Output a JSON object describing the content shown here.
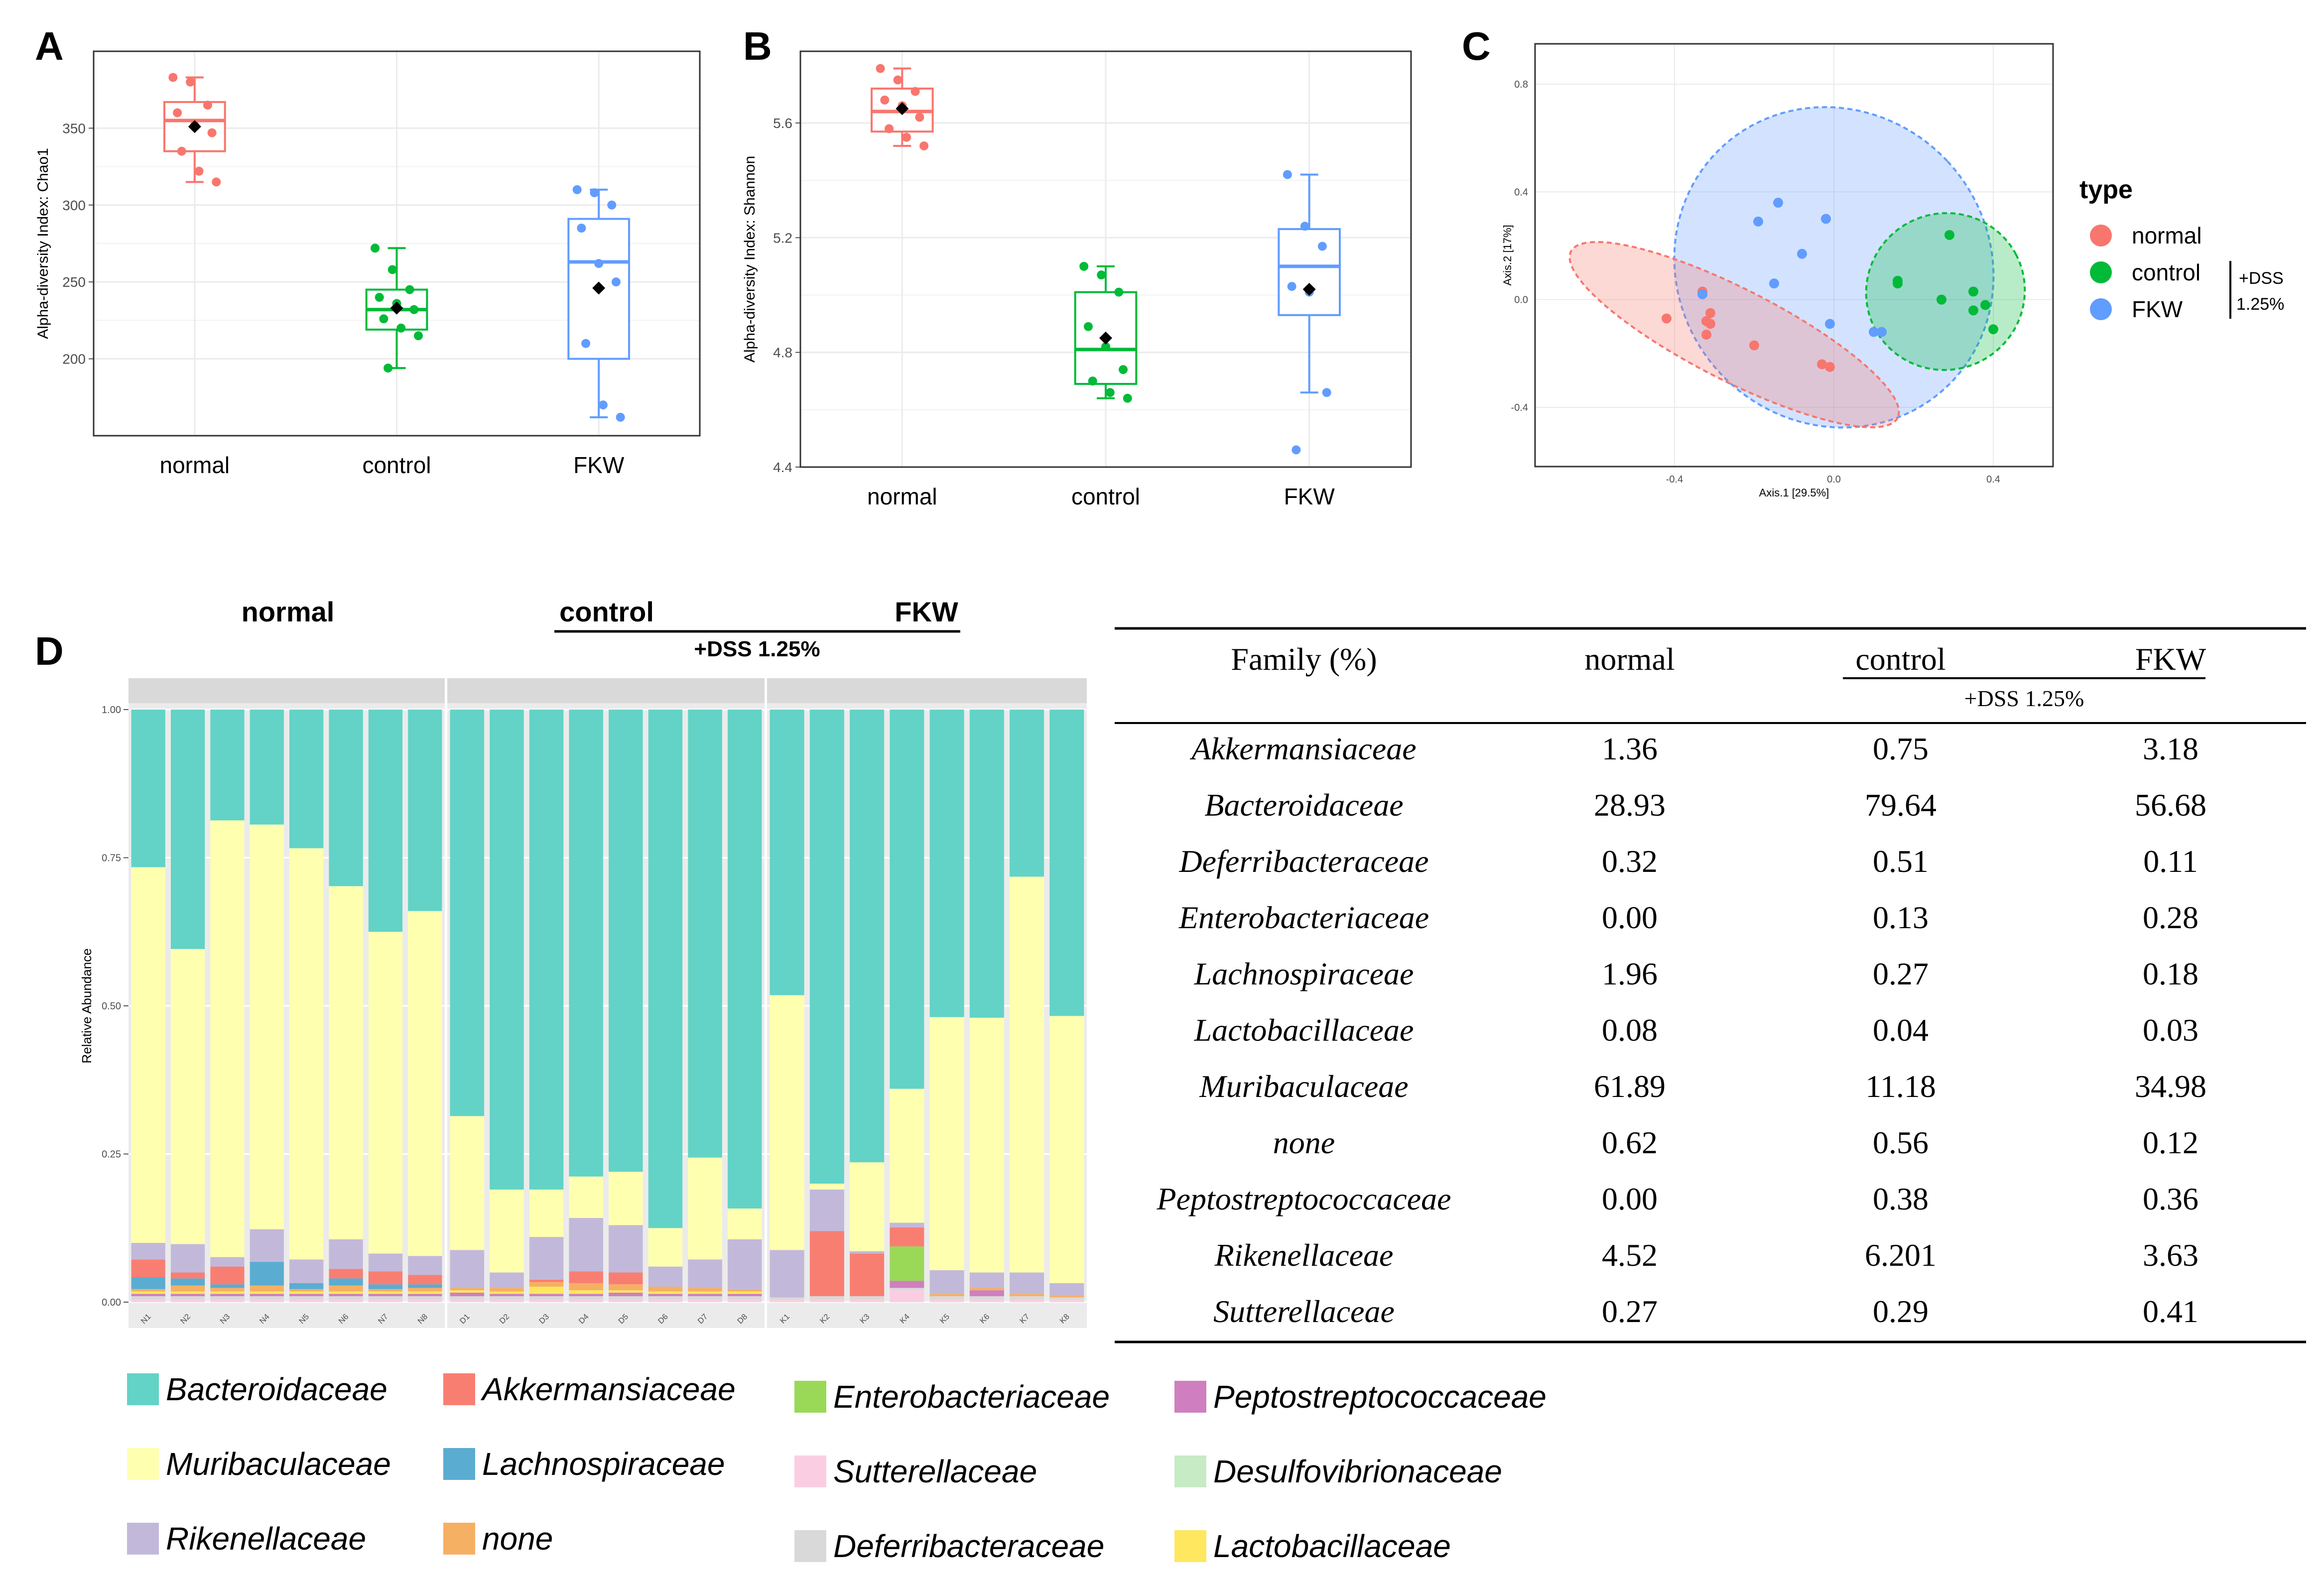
{
  "colors": {
    "normal": "#f8766d",
    "control": "#00ba38",
    "FKW": "#619cff",
    "Bacteroidaceae": "#62d3c6",
    "Muribaculaceae": "#ffffb0",
    "Rikenellaceae": "#c2b9da",
    "Akkermansiaceae": "#f97e72",
    "Lachnospiraceae": "#5bacd1",
    "none": "#f6b063",
    "Enterobacteriaceae": "#9ad857",
    "Sutterellaceae": "#fbcde2",
    "Deferribacteraceae": "#d9d9d9",
    "Peptostreptococcaceae": "#cf7fbf",
    "Desulfovibrionaceae": "#c7ebc4",
    "Lactobacillaceae": "#ffe75f"
  },
  "panels": {
    "A": "A",
    "B": "B",
    "C": "C",
    "D": "D"
  },
  "chart_data": [
    {
      "panel": "A",
      "type": "box",
      "ylabel": "Alpha-diversity Index: Chao1",
      "xlabel": "",
      "categories": [
        "normal",
        "control",
        "FKW"
      ],
      "ylim": [
        150,
        400
      ],
      "yticks": [
        200,
        250,
        300,
        350
      ],
      "boxes": [
        {
          "name": "normal",
          "min": 315,
          "q1": 335,
          "median": 355,
          "q3": 367,
          "max": 383,
          "mean": 351,
          "points": [
            383,
            380,
            365,
            360,
            352,
            347,
            335,
            322,
            315
          ]
        },
        {
          "name": "control",
          "min": 194,
          "q1": 219,
          "median": 232,
          "q3": 245,
          "max": 272,
          "mean": 233,
          "points": [
            272,
            258,
            245,
            240,
            236,
            232,
            226,
            220,
            215,
            194
          ]
        },
        {
          "name": "FKW",
          "min": 162,
          "q1": 200,
          "median": 263,
          "q3": 291,
          "max": 310,
          "mean": 246,
          "points": [
            310,
            308,
            300,
            285,
            262,
            250,
            210,
            170,
            162
          ]
        }
      ]
    },
    {
      "panel": "B",
      "type": "box",
      "ylabel": "Alpha-diversity Index: Shannon",
      "xlabel": "",
      "categories": [
        "normal",
        "control",
        "FKW"
      ],
      "ylim": [
        4.4,
        5.85
      ],
      "yticks": [
        4.4,
        4.8,
        5.2,
        5.6
      ],
      "ytick_labels": [
        "4.4",
        "4.8",
        "5.2",
        "5.6"
      ],
      "boxes": [
        {
          "name": "normal",
          "min": 5.52,
          "q1": 5.57,
          "median": 5.64,
          "q3": 5.72,
          "max": 5.79,
          "mean": 5.65,
          "points": [
            5.79,
            5.75,
            5.71,
            5.68,
            5.66,
            5.62,
            5.58,
            5.55,
            5.52
          ]
        },
        {
          "name": "control",
          "min": 4.64,
          "q1": 4.69,
          "median": 4.81,
          "q3": 5.01,
          "max": 5.1,
          "mean": 4.85,
          "points": [
            5.1,
            5.07,
            5.01,
            4.89,
            4.82,
            4.74,
            4.7,
            4.66,
            4.64
          ]
        },
        {
          "name": "FKW",
          "min": 4.66,
          "q1": 4.93,
          "median": 5.1,
          "q3": 5.23,
          "max": 5.42,
          "mean": 5.02,
          "points": [
            5.42,
            5.24,
            5.17,
            5.03,
            5.01,
            4.66,
            4.46
          ]
        }
      ]
    },
    {
      "panel": "C",
      "type": "scatter",
      "title": "",
      "xlabel": "Axis.1   [29.5%]",
      "ylabel": "Axis.2   [17%]",
      "xlim": [
        -0.75,
        0.55
      ],
      "ylim": [
        -0.62,
        0.95
      ],
      "xticks": [
        -0.4,
        0.0,
        0.4
      ],
      "xtick_labels": [
        "-0.4",
        "0.0",
        "0.4"
      ],
      "yticks": [
        -0.4,
        0.0,
        0.4,
        0.8
      ],
      "ytick_labels": [
        "-0.4",
        "0.0",
        "0.4",
        "0.8"
      ],
      "legend_title": "type",
      "legend": [
        "normal",
        "control",
        "FKW"
      ],
      "legend_note": [
        "+DSS",
        "1.25%"
      ],
      "series": [
        {
          "name": "normal",
          "points": [
            [
              -0.33,
              0.03
            ],
            [
              -0.31,
              -0.05
            ],
            [
              -0.42,
              -0.07
            ],
            [
              -0.32,
              -0.08
            ],
            [
              -0.31,
              -0.09
            ],
            [
              -0.32,
              -0.13
            ],
            [
              -0.2,
              -0.17
            ],
            [
              -0.03,
              -0.24
            ],
            [
              -0.01,
              -0.25
            ]
          ],
          "ellipse": {
            "cx": -0.25,
            "cy": -0.13,
            "rx": 0.46,
            "ry": 0.17,
            "angle_deg": 27
          }
        },
        {
          "name": "control",
          "points": [
            [
              0.29,
              0.24
            ],
            [
              0.16,
              0.07
            ],
            [
              0.16,
              0.06
            ],
            [
              0.35,
              0.03
            ],
            [
              0.27,
              0.0
            ],
            [
              0.38,
              -0.02
            ],
            [
              0.35,
              -0.04
            ],
            [
              0.4,
              -0.11
            ]
          ],
          "ellipse": {
            "cx": 0.28,
            "cy": 0.03,
            "rx": 0.2,
            "ry": 0.29,
            "angle_deg": -28
          }
        },
        {
          "name": "FKW",
          "points": [
            [
              -0.14,
              0.36
            ],
            [
              -0.02,
              0.3
            ],
            [
              -0.19,
              0.29
            ],
            [
              -0.08,
              0.17
            ],
            [
              -0.15,
              0.06
            ],
            [
              -0.33,
              0.02
            ],
            [
              -0.01,
              -0.09
            ],
            [
              0.1,
              -0.12
            ],
            [
              0.12,
              -0.12
            ]
          ],
          "ellipse": {
            "cx": 0.0,
            "cy": 0.12,
            "rx": 0.39,
            "ry": 0.61,
            "angle_deg": -43
          }
        }
      ]
    },
    {
      "panel": "D",
      "type": "stacked-bar",
      "ylabel": "Relative Abundance",
      "ylim": [
        0,
        1
      ],
      "yticks": [
        0,
        0.25,
        0.5,
        0.75,
        1.0
      ],
      "ytick_labels": [
        "0.00",
        "0.25",
        "0.50",
        "0.75",
        "1.00"
      ],
      "group_headers": [
        "normal",
        "control",
        "FKW"
      ],
      "dss_label": "+DSS 1.25%",
      "families": [
        "Sutterellaceae",
        "Deferribacteraceae",
        "Peptostreptococcaceae",
        "Lactobacillaceae",
        "none",
        "Enterobacteriaceae",
        "Lachnospiraceae",
        "Akkermansiaceae",
        "Rikenellaceae",
        "Muribaculaceae",
        "Bacteroidaceae"
      ],
      "groups": [
        {
          "name": "normal",
          "samples": [
            {
              "id": "N1",
              "values": [
                0.004,
                0.006,
                0.004,
                0.004,
                0.004,
                0,
                0.02,
                0.03,
                0.028,
                0.634,
                0.266
              ]
            },
            {
              "id": "N2",
              "values": [
                0.004,
                0.006,
                0.004,
                0.004,
                0.01,
                0,
                0.012,
                0.01,
                0.048,
                0.498,
                0.404
              ]
            },
            {
              "id": "N3",
              "values": [
                0.004,
                0.006,
                0.004,
                0.004,
                0.006,
                0,
                0.006,
                0.03,
                0.016,
                0.737,
                0.187
              ]
            },
            {
              "id": "N4",
              "values": [
                0.004,
                0.006,
                0.004,
                0.004,
                0.01,
                0,
                0.04,
                0,
                0.055,
                0.683,
                0.194
              ]
            },
            {
              "id": "N5",
              "values": [
                0.004,
                0.006,
                0.004,
                0.004,
                0.004,
                0,
                0.01,
                0,
                0.04,
                0.694,
                0.234
              ]
            },
            {
              "id": "N6",
              "values": [
                0.004,
                0.006,
                0.004,
                0.004,
                0.01,
                0,
                0.012,
                0.016,
                0.05,
                0.596,
                0.298
              ]
            },
            {
              "id": "N7",
              "values": [
                0.004,
                0.006,
                0.004,
                0.004,
                0.004,
                0,
                0.008,
                0.022,
                0.03,
                0.543,
                0.375
              ]
            },
            {
              "id": "N8",
              "values": [
                0.004,
                0.006,
                0.004,
                0.004,
                0.006,
                0,
                0.006,
                0.016,
                0.032,
                0.582,
                0.34
              ]
            }
          ]
        },
        {
          "name": "control",
          "samples": [
            {
              "id": "D1",
              "values": [
                0.004,
                0.006,
                0.006,
                0.004,
                0.004,
                0,
                0,
                0,
                0.064,
                0.226,
                0.686
              ]
            },
            {
              "id": "D2",
              "values": [
                0.004,
                0.006,
                0.004,
                0.004,
                0.006,
                0,
                0,
                0,
                0.026,
                0.14,
                0.81
              ]
            },
            {
              "id": "D3",
              "values": [
                0.004,
                0.006,
                0.004,
                0.012,
                0.008,
                0,
                0,
                0.004,
                0.072,
                0.08,
                0.81
              ]
            },
            {
              "id": "D4",
              "values": [
                0.004,
                0.006,
                0.004,
                0.006,
                0.012,
                0,
                0,
                0.02,
                0.09,
                0.07,
                0.788
              ]
            },
            {
              "id": "D5",
              "values": [
                0.004,
                0.006,
                0.006,
                0.004,
                0.01,
                0,
                0,
                0.02,
                0.08,
                0.09,
                0.78
              ]
            },
            {
              "id": "D6",
              "values": [
                0.004,
                0.006,
                0.004,
                0.004,
                0.008,
                0,
                0,
                0,
                0.034,
                0.065,
                0.875
              ]
            },
            {
              "id": "D7",
              "values": [
                0.004,
                0.006,
                0.004,
                0.004,
                0.006,
                0,
                0,
                0,
                0.048,
                0.172,
                0.756
              ]
            },
            {
              "id": "D8",
              "values": [
                0.004,
                0.006,
                0.004,
                0.004,
                0.004,
                0,
                0,
                0,
                0.084,
                0.052,
                0.842
              ]
            }
          ]
        },
        {
          "name": "FKW",
          "samples": [
            {
              "id": "K1",
              "values": [
                0.004,
                0.004,
                0,
                0,
                0,
                0,
                0,
                0,
                0.08,
                0.43,
                0.482
              ]
            },
            {
              "id": "K2",
              "values": [
                0.004,
                0.006,
                0,
                0,
                0,
                0,
                0,
                0.11,
                0.07,
                0.01,
                0.8
              ]
            },
            {
              "id": "K3",
              "values": [
                0.004,
                0.006,
                0,
                0,
                0,
                0,
                0,
                0.072,
                0.004,
                0.15,
                0.764
              ]
            },
            {
              "id": "K4",
              "values": [
                0.02,
                0.004,
                0.012,
                0,
                0,
                0.058,
                0,
                0.032,
                0.008,
                0.226,
                0.64
              ]
            },
            {
              "id": "K5",
              "values": [
                0.004,
                0.006,
                0,
                0,
                0.004,
                0,
                0,
                0,
                0.04,
                0.427,
                0.519
              ]
            },
            {
              "id": "K6",
              "values": [
                0.004,
                0.006,
                0.01,
                0,
                0.004,
                0,
                0,
                0,
                0.026,
                0.43,
                0.52
              ]
            },
            {
              "id": "K7",
              "values": [
                0.004,
                0.006,
                0,
                0,
                0.004,
                0,
                0,
                0,
                0.036,
                0.668,
                0.282
              ]
            },
            {
              "id": "K8",
              "values": [
                0.004,
                0.004,
                0,
                0,
                0.004,
                0,
                0,
                0,
                0.02,
                0.451,
                0.517
              ]
            }
          ]
        }
      ]
    },
    {
      "panel": "D-table",
      "type": "table",
      "columns": [
        "Family (%)",
        "normal",
        "control",
        "FKW"
      ],
      "dss_label": "+DSS 1.25%",
      "rows": [
        [
          "Akkermansiaceae",
          "1.36",
          "0.75",
          "3.18"
        ],
        [
          "Bacteroidaceae",
          "28.93",
          "79.64",
          "56.68"
        ],
        [
          "Deferribacteraceae",
          "0.32",
          "0.51",
          "0.11"
        ],
        [
          "Enterobacteriaceae",
          "0.00",
          "0.13",
          "0.28"
        ],
        [
          "Lachnospiraceae",
          "1.96",
          "0.27",
          "0.18"
        ],
        [
          "Lactobacillaceae",
          "0.08",
          "0.04",
          "0.03"
        ],
        [
          "Muribaculaceae",
          "61.89",
          "11.18",
          "34.98"
        ],
        [
          "none",
          "0.62",
          "0.56",
          "0.12"
        ],
        [
          "Peptostreptococcaceae",
          "0.00",
          "0.38",
          "0.36"
        ],
        [
          "Rikenellaceae",
          "4.52",
          "6.201",
          "3.63"
        ],
        [
          "Sutterellaceae",
          "0.27",
          "0.29",
          "0.41"
        ]
      ]
    },
    {
      "panel": "D-legend",
      "type": "legend",
      "items": [
        "Bacteroidaceae",
        "Akkermansiaceae",
        "Enterobacteriaceae",
        "Peptostreptococcaceae",
        "Muribaculaceae",
        "Lachnospiraceae",
        "Sutterellaceae",
        "Desulfovibrionaceae",
        "Rikenellaceae",
        "none",
        "Deferribacteraceae",
        "Lactobacillaceae"
      ]
    }
  ]
}
